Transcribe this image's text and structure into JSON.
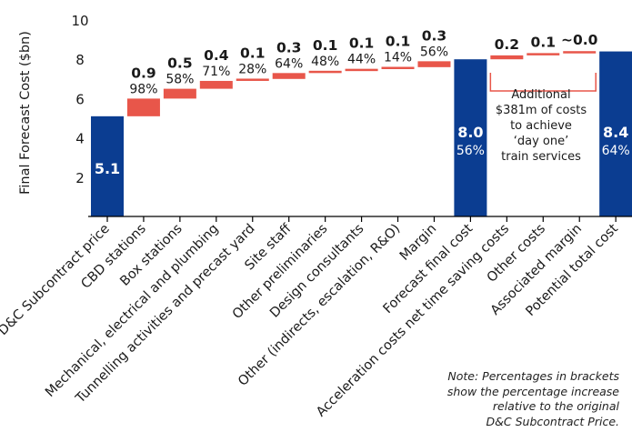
{
  "chart_data": {
    "type": "bar",
    "subtype": "waterfall",
    "ylabel": "Final Forecast Cost ($bn)",
    "ylim": [
      0,
      10
    ],
    "yticks": [
      "2",
      "4",
      "6",
      "8",
      "10"
    ],
    "grid": false,
    "colors": {
      "total": "#0b3d91",
      "increment": "#e8564a",
      "axis": "#000000"
    },
    "bars": [
      {
        "category": "D&C Subcontract price",
        "kind": "total",
        "value": 5.1,
        "label": "5.1",
        "pct": ""
      },
      {
        "category": "CBD stations",
        "kind": "increment",
        "value": 0.9,
        "label": "0.9",
        "pct": "98%"
      },
      {
        "category": "Box stations",
        "kind": "increment",
        "value": 0.5,
        "label": "0.5",
        "pct": "58%"
      },
      {
        "category": "Mechanical, electrical and plumbing",
        "kind": "increment",
        "value": 0.4,
        "label": "0.4",
        "pct": "71%"
      },
      {
        "category": "Tunnelling activities and precast yard",
        "kind": "increment",
        "value": 0.1,
        "label": "0.1",
        "pct": "28%"
      },
      {
        "category": "Site staff",
        "kind": "increment",
        "value": 0.3,
        "label": "0.3",
        "pct": "64%"
      },
      {
        "category": "Other preliminaries",
        "kind": "increment",
        "value": 0.1,
        "label": "0.1",
        "pct": "48%"
      },
      {
        "category": "Design consultants",
        "kind": "increment",
        "value": 0.1,
        "label": "0.1",
        "pct": "44%"
      },
      {
        "category": "Other (indirects, escalation, R&O)",
        "kind": "increment",
        "value": 0.1,
        "label": "0.1",
        "pct": "14%"
      },
      {
        "category": "Margin",
        "kind": "increment",
        "value": 0.3,
        "label": "0.3",
        "pct": "56%"
      },
      {
        "category": "Forecast final cost",
        "kind": "total",
        "value": 8.0,
        "label": "8.0",
        "pct": "56%"
      },
      {
        "category": "Acceleration costs net time saving costs",
        "kind": "increment",
        "value": 0.2,
        "label": "0.2",
        "pct": ""
      },
      {
        "category": "Other costs",
        "kind": "increment",
        "value": 0.1,
        "label": "0.1",
        "pct": ""
      },
      {
        "category": "Associated margin",
        "kind": "increment",
        "value": 0.0,
        "label": "~0.0",
        "pct": ""
      },
      {
        "category": "Potential total cost",
        "kind": "total",
        "value": 8.4,
        "label": "8.4",
        "pct": "64%"
      }
    ],
    "annotation": "Additional $381m of costs to achieve ‘day one’ train services",
    "annotation_lines": [
      "Additional",
      "$381m of costs",
      "to achieve",
      "‘day one’",
      "train services"
    ],
    "note": "Note: Percentages in brackets show the percentage increase relative to the original D&C Subcontract Price.",
    "note_lines": [
      "Note: Percentages in brackets",
      "show the percentage increase",
      "relative to the original",
      "D&C Subcontract Price."
    ]
  }
}
